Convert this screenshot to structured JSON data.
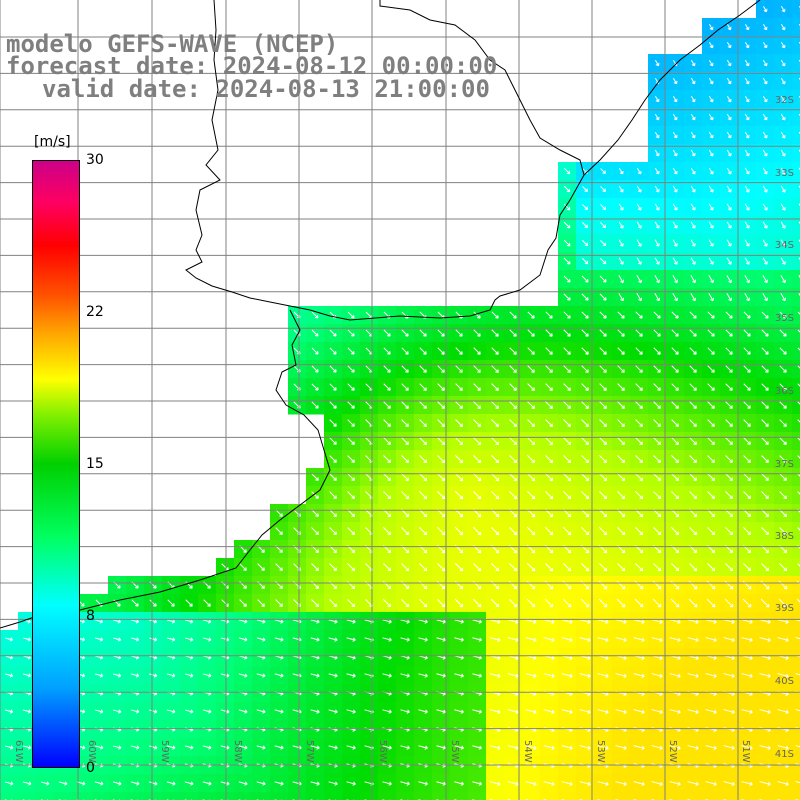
{
  "title": {
    "line1": "modelo GEFS-WAVE (NCEP)",
    "line2": "forecast date: 2024-08-12 00:00:00",
    "line3": "valid date: 2024-08-13 21:00:00"
  },
  "colorbar": {
    "unit": "[m/s]",
    "ticks": [
      "30",
      "22",
      "15",
      "8",
      "0"
    ]
  },
  "lat_labels": [
    "32S",
    "33S",
    "34S",
    "35S",
    "36S",
    "37S",
    "38S",
    "39S",
    "40S",
    "41S"
  ],
  "lon_labels": [
    "61W",
    "60W",
    "59W",
    "58W",
    "57W",
    "56W",
    "55W",
    "54W",
    "53W",
    "52W",
    "51W"
  ],
  "colors": {
    "land": "#ffffff",
    "coast": "#000000",
    "grid": "#808080",
    "title": "#7f7f7f"
  }
}
